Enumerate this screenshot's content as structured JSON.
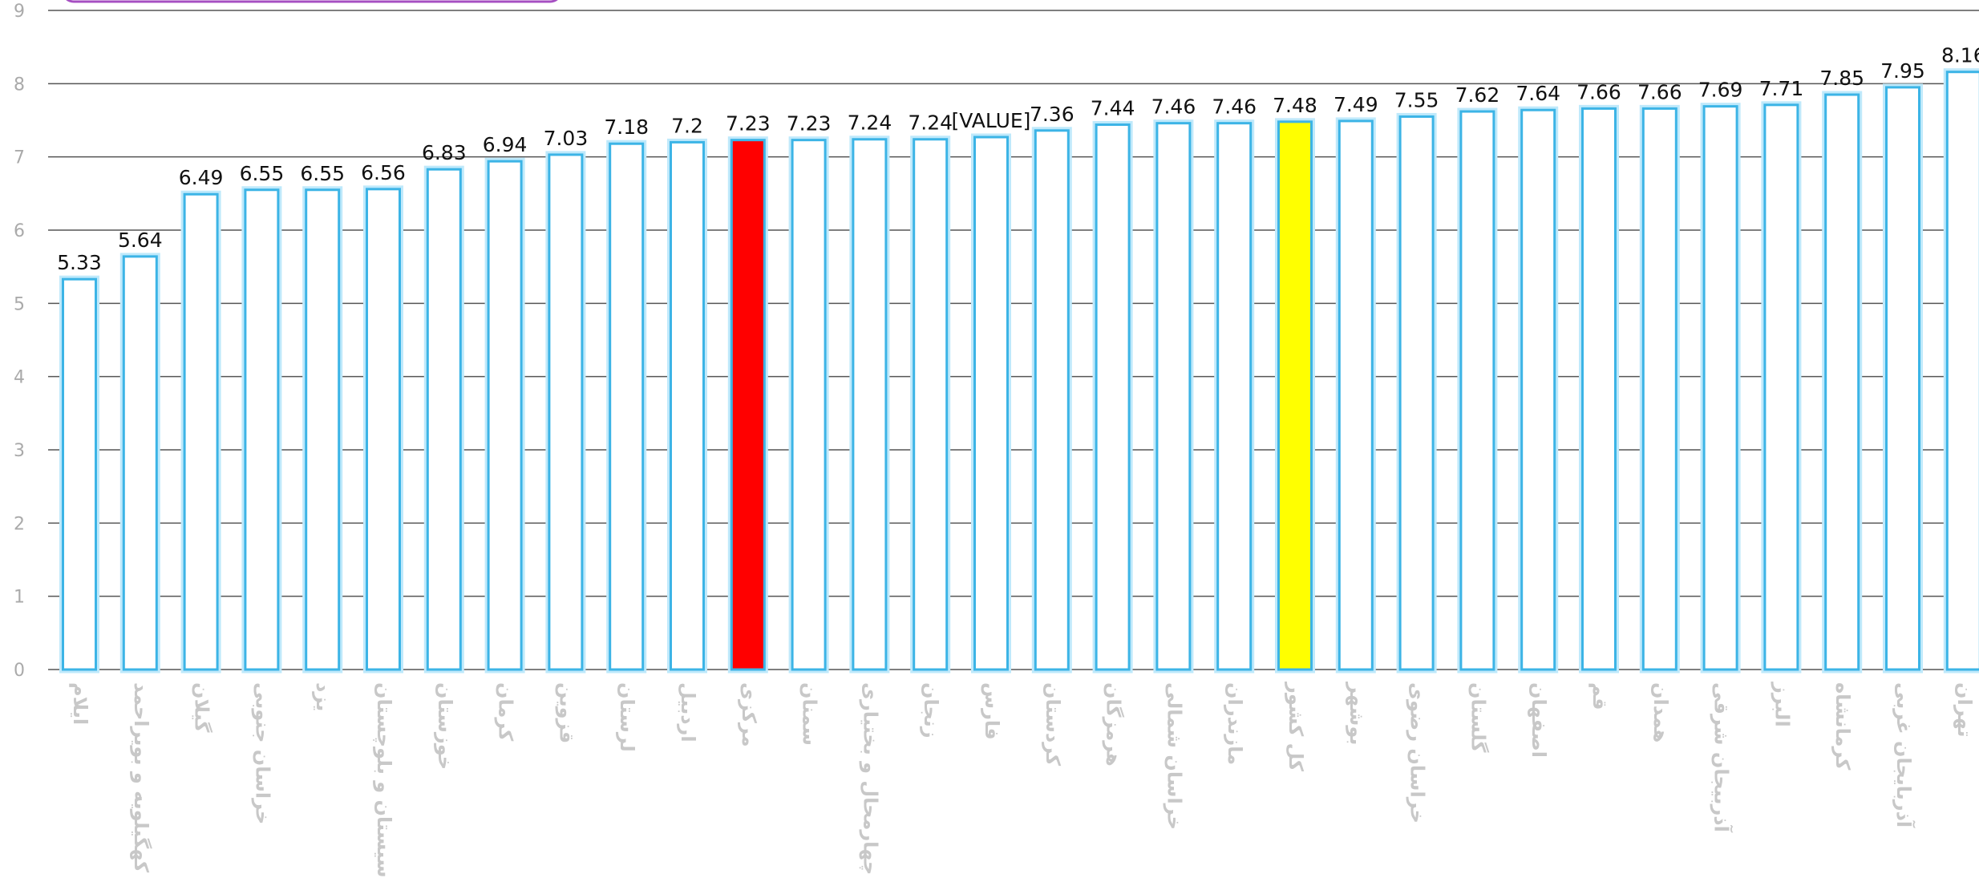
{
  "chart_data": {
    "type": "bar",
    "title": "",
    "xlabel": "",
    "ylabel": "",
    "ylim": [
      0,
      9
    ],
    "yticks": [
      "0",
      "1",
      "2",
      "3",
      "4",
      "5",
      "6",
      "7",
      "8",
      "9"
    ],
    "grid": true,
    "colors": {
      "default_fill": "#ffffff",
      "default_stroke": "#3cb4e6",
      "highlight_red": "#ff0000",
      "highlight_yellow": "#ffff00",
      "grid": "#555555"
    },
    "categories": [
      "ایلام",
      "کهگیلویه و بویراحمد",
      "گیلان",
      "خراسان جنوبی",
      "یزد",
      "سیستان و بلوچستان",
      "خوزستان",
      "کرمان",
      "قزوین",
      "لرستان",
      "اردبیل",
      "مرکزی",
      "سمنان",
      "چهارمحال و بختیاری",
      "زنجان",
      "فارس",
      "کردستان",
      "هرمزگان",
      "خراسان شمالی",
      "مازندران",
      "کل کشور",
      "بوشهر",
      "خراسان رضوی",
      "گلستان",
      "اصفهان",
      "قم",
      "همدان",
      "آذربیجان شرقی",
      "البرز",
      "کرمانشاه",
      "آذربایجان غربی",
      "تهران"
    ],
    "values": [
      5.33,
      5.64,
      6.49,
      6.55,
      6.55,
      6.56,
      6.83,
      6.94,
      7.03,
      7.18,
      7.2,
      7.23,
      7.23,
      7.24,
      7.24,
      7.27,
      7.36,
      7.44,
      7.46,
      7.46,
      7.48,
      7.49,
      7.55,
      7.62,
      7.64,
      7.66,
      7.66,
      7.69,
      7.71,
      7.85,
      7.95,
      8.16
    ],
    "data_labels": [
      "5.33",
      "5.64",
      "6.49",
      "6.55",
      "6.55",
      "6.56",
      "6.83",
      "6.94",
      "7.03",
      "7.18",
      "7.2",
      "7.23",
      "7.23",
      "7.24",
      "7.24",
      "[VALUE]",
      "7.36",
      "7.44",
      "7.46",
      "7.46",
      "7.48",
      "7.49",
      "7.55",
      "7.62",
      "7.64",
      "7.66",
      "7.66",
      "7.69",
      "7.71",
      "7.85",
      "7.95",
      "8.16"
    ],
    "highlights": [
      {
        "category": "مرکزی",
        "color": "#ff0000"
      },
      {
        "category": "کل کشور",
        "color": "#ffff00"
      }
    ]
  }
}
